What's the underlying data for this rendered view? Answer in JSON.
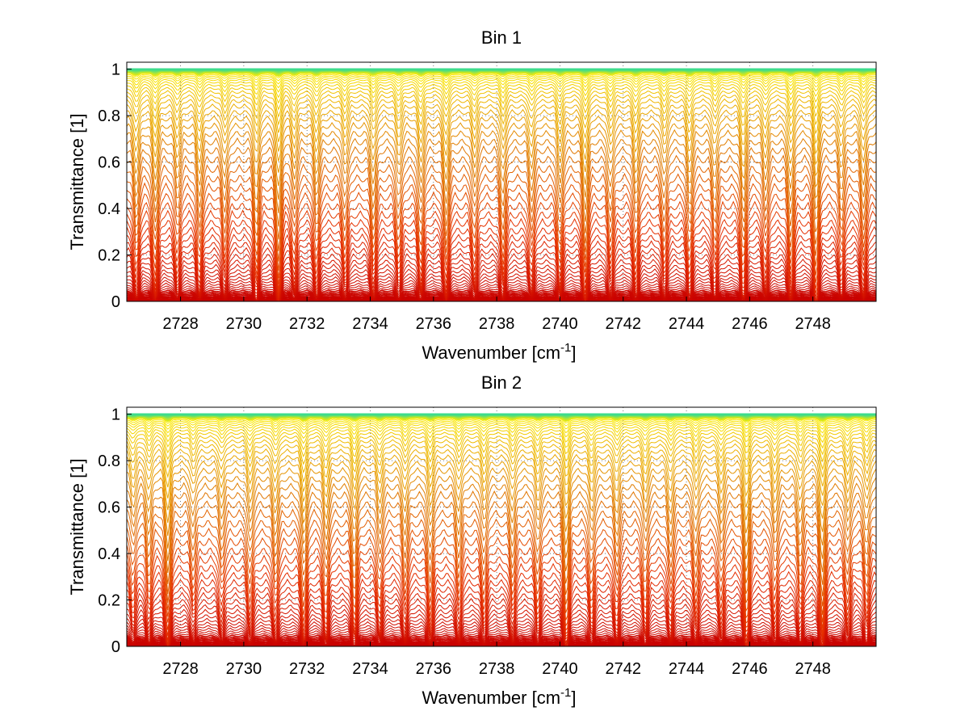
{
  "figure": {
    "background": "#ffffff"
  },
  "chart_data": [
    {
      "type": "line",
      "title": "Bin 1",
      "xlabel": {
        "main": "Wavenumber [cm",
        "sup": "-1",
        "tail": "]"
      },
      "ylabel": "Transmittance [1]",
      "xlim": [
        2726.3,
        2750.0
      ],
      "ylim": [
        0,
        1.03
      ],
      "xticks": [
        2728,
        2730,
        2732,
        2734,
        2736,
        2738,
        2740,
        2742,
        2744,
        2746,
        2748
      ],
      "yticks": [
        0,
        0.2,
        0.4,
        0.6,
        0.8,
        1
      ],
      "ytick_labels": [
        "0",
        "0.2",
        "0.4",
        "0.6",
        "0.8",
        "1"
      ],
      "grid": "dotted",
      "colormap": "autumn-to-green",
      "series_count": 60,
      "series_levels": [
        0.004,
        0.008,
        0.012,
        0.017,
        0.022,
        0.028,
        0.034,
        0.041,
        0.049,
        0.058,
        0.068,
        0.079,
        0.092,
        0.106,
        0.122,
        0.14,
        0.16,
        0.182,
        0.206,
        0.232,
        0.26,
        0.29,
        0.322,
        0.356,
        0.392,
        0.43,
        0.47,
        0.51,
        0.55,
        0.59,
        0.63,
        0.668,
        0.704,
        0.738,
        0.77,
        0.8,
        0.826,
        0.85,
        0.872,
        0.891,
        0.908,
        0.923,
        0.936,
        0.947,
        0.957,
        0.965,
        0.972,
        0.978,
        0.983,
        0.987,
        0.99,
        0.993,
        0.995,
        0.996,
        0.997,
        0.998,
        0.999,
        0.999,
        1.0,
        1.0
      ],
      "absorption_lines": [
        {
          "x": 2726.6,
          "depth": 0.7
        },
        {
          "x": 2727.2,
          "depth": 0.8
        },
        {
          "x": 2727.9,
          "depth": 0.6
        },
        {
          "x": 2728.6,
          "depth": 0.7
        },
        {
          "x": 2729.4,
          "depth": 0.6
        },
        {
          "x": 2730.4,
          "depth": 0.8
        },
        {
          "x": 2731.1,
          "depth": 1.0
        },
        {
          "x": 2731.6,
          "depth": 0.6
        },
        {
          "x": 2732.3,
          "depth": 0.7
        },
        {
          "x": 2733.2,
          "depth": 0.6
        },
        {
          "x": 2734.1,
          "depth": 0.7
        },
        {
          "x": 2734.9,
          "depth": 0.6
        },
        {
          "x": 2735.6,
          "depth": 0.7
        },
        {
          "x": 2736.4,
          "depth": 0.8
        },
        {
          "x": 2737.3,
          "depth": 0.6
        },
        {
          "x": 2738.2,
          "depth": 0.7
        },
        {
          "x": 2739.1,
          "depth": 0.6
        },
        {
          "x": 2740.0,
          "depth": 0.7
        },
        {
          "x": 2740.8,
          "depth": 0.9
        },
        {
          "x": 2741.6,
          "depth": 0.6
        },
        {
          "x": 2742.4,
          "depth": 0.7
        },
        {
          "x": 2743.3,
          "depth": 0.6
        },
        {
          "x": 2744.1,
          "depth": 0.7
        },
        {
          "x": 2744.9,
          "depth": 0.6
        },
        {
          "x": 2745.8,
          "depth": 0.8
        },
        {
          "x": 2746.5,
          "depth": 0.6
        },
        {
          "x": 2747.3,
          "depth": 0.8
        },
        {
          "x": 2748.1,
          "depth": 1.0
        },
        {
          "x": 2748.9,
          "depth": 0.6
        },
        {
          "x": 2749.6,
          "depth": 0.7
        }
      ]
    },
    {
      "type": "line",
      "title": "Bin 2",
      "xlabel": {
        "main": "Wavenumber [cm",
        "sup": "-1",
        "tail": "]"
      },
      "ylabel": "Transmittance [1]",
      "xlim": [
        2726.3,
        2750.0
      ],
      "ylim": [
        0,
        1.03
      ],
      "xticks": [
        2728,
        2730,
        2732,
        2734,
        2736,
        2738,
        2740,
        2742,
        2744,
        2746,
        2748
      ],
      "yticks": [
        0,
        0.2,
        0.4,
        0.6,
        0.8,
        1
      ],
      "ytick_labels": [
        "0",
        "0.2",
        "0.4",
        "0.6",
        "0.8",
        "1"
      ],
      "grid": "dotted",
      "colormap": "autumn-to-green",
      "series_count": 60,
      "series_levels": [
        0.004,
        0.008,
        0.012,
        0.017,
        0.022,
        0.028,
        0.034,
        0.041,
        0.049,
        0.058,
        0.068,
        0.079,
        0.092,
        0.106,
        0.122,
        0.14,
        0.16,
        0.182,
        0.206,
        0.232,
        0.26,
        0.29,
        0.322,
        0.356,
        0.392,
        0.43,
        0.47,
        0.51,
        0.55,
        0.59,
        0.63,
        0.668,
        0.704,
        0.738,
        0.77,
        0.8,
        0.826,
        0.85,
        0.872,
        0.891,
        0.908,
        0.923,
        0.936,
        0.947,
        0.957,
        0.965,
        0.972,
        0.978,
        0.983,
        0.987,
        0.99,
        0.993,
        0.995,
        0.996,
        0.997,
        0.998,
        0.999,
        0.999,
        1.0,
        1.0
      ],
      "absorption_lines": [
        {
          "x": 2726.5,
          "depth": 0.5
        },
        {
          "x": 2727.0,
          "depth": 0.6
        },
        {
          "x": 2727.6,
          "depth": 1.0
        },
        {
          "x": 2728.4,
          "depth": 0.5
        },
        {
          "x": 2729.3,
          "depth": 0.5
        },
        {
          "x": 2730.2,
          "depth": 0.6
        },
        {
          "x": 2731.0,
          "depth": 0.6
        },
        {
          "x": 2731.9,
          "depth": 0.8
        },
        {
          "x": 2732.6,
          "depth": 0.7
        },
        {
          "x": 2733.5,
          "depth": 0.8
        },
        {
          "x": 2734.3,
          "depth": 0.6
        },
        {
          "x": 2735.1,
          "depth": 0.6
        },
        {
          "x": 2735.9,
          "depth": 0.7
        },
        {
          "x": 2736.8,
          "depth": 0.6
        },
        {
          "x": 2737.6,
          "depth": 0.6
        },
        {
          "x": 2738.5,
          "depth": 0.6
        },
        {
          "x": 2739.3,
          "depth": 0.6
        },
        {
          "x": 2740.2,
          "depth": 1.0
        },
        {
          "x": 2741.0,
          "depth": 0.6
        },
        {
          "x": 2741.8,
          "depth": 0.6
        },
        {
          "x": 2742.7,
          "depth": 0.6
        },
        {
          "x": 2743.5,
          "depth": 0.6
        },
        {
          "x": 2744.3,
          "depth": 0.6
        },
        {
          "x": 2745.1,
          "depth": 0.6
        },
        {
          "x": 2745.9,
          "depth": 1.0
        },
        {
          "x": 2746.8,
          "depth": 0.6
        },
        {
          "x": 2747.6,
          "depth": 0.6
        },
        {
          "x": 2748.3,
          "depth": 1.0
        },
        {
          "x": 2749.1,
          "depth": 0.6
        },
        {
          "x": 2749.7,
          "depth": 0.6
        }
      ]
    }
  ]
}
